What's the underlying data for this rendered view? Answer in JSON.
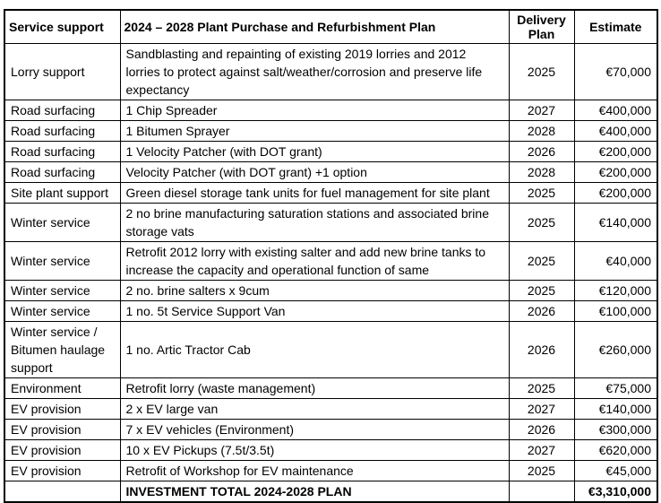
{
  "table": {
    "headers": {
      "service": "Service support",
      "description": "2024 – 2028 Plant Purchase and Refurbishment Plan",
      "delivery": "Delivery Plan",
      "estimate": "Estimate"
    },
    "rows": [
      {
        "service": "Lorry support",
        "description": "Sandblasting and repainting of existing 2019 lorries and 2012 lorries to protect against salt/weather/corrosion and preserve life expectancy",
        "delivery": "2025",
        "estimate": "€70,000"
      },
      {
        "service": "Road surfacing",
        "description": "1 Chip Spreader",
        "delivery": "2027",
        "estimate": "€400,000"
      },
      {
        "service": "Road surfacing",
        "description": "1 Bitumen Sprayer",
        "delivery": "2028",
        "estimate": "€400,000"
      },
      {
        "service": "Road surfacing",
        "description": "1 Velocity Patcher (with DOT grant)",
        "delivery": "2026",
        "estimate": "€200,000"
      },
      {
        "service": "Road surfacing",
        "description": "Velocity Patcher (with DOT grant) +1 option",
        "delivery": "2028",
        "estimate": "€200,000"
      },
      {
        "service": "Site plant support",
        "description": "Green diesel storage tank units for fuel management for site plant",
        "delivery": "2025",
        "estimate": "€200,000"
      },
      {
        "service": "Winter service",
        "description": "2 no brine manufacturing saturation stations and associated brine storage vats",
        "delivery": "2025",
        "estimate": "€140,000"
      },
      {
        "service": "Winter service",
        "description": "Retrofit 2012 lorry with existing salter and add new brine tanks to increase the capacity and operational function of same",
        "delivery": "2025",
        "estimate": "€40,000"
      },
      {
        "service": "Winter service",
        "description": "2 no. brine salters x 9cum",
        "delivery": "2025",
        "estimate": "€120,000"
      },
      {
        "service": "Winter service",
        "description": "1 no. 5t Service Support Van",
        "delivery": "2026",
        "estimate": "€100,000"
      },
      {
        "service": "Winter service / Bitumen haulage support",
        "description": "1 no. Artic Tractor Cab",
        "delivery": "2026",
        "estimate": "€260,000"
      },
      {
        "service": "Environment",
        "description": "Retrofit lorry (waste management)",
        "delivery": "2025",
        "estimate": "€75,000"
      },
      {
        "service": "EV provision",
        "description": "2 x EV large van",
        "delivery": "2027",
        "estimate": "€140,000"
      },
      {
        "service": "EV provision",
        "description": "7 x EV vehicles (Environment)",
        "delivery": "2026",
        "estimate": "€300,000"
      },
      {
        "service": "EV provision",
        "description": "10 x EV Pickups (7.5t/3.5t)",
        "delivery": "2027",
        "estimate": "€620,000"
      },
      {
        "service": "EV provision",
        "description": "Retrofit of Workshop for EV maintenance",
        "delivery": "2025",
        "estimate": "€45,000"
      }
    ],
    "total": {
      "service": "",
      "label": "INVESTMENT TOTAL 2024-2028 PLAN",
      "delivery": "",
      "estimate": "€3,310,000"
    }
  }
}
